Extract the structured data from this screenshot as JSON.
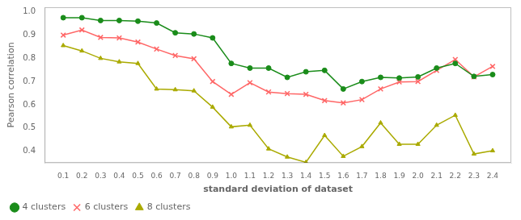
{
  "chart_data": {
    "type": "line",
    "xlabel": "standard deviation of dataset",
    "ylabel": "Pearson correlation",
    "x": [
      0.1,
      0.2,
      0.3,
      0.4,
      0.5,
      0.6,
      0.7,
      0.8,
      0.9,
      1.0,
      1.1,
      1.2,
      1.3,
      1.4,
      1.5,
      1.6,
      1.7,
      1.8,
      1.9,
      2.0,
      2.1,
      2.2,
      2.3,
      2.4
    ],
    "series": [
      {
        "name": "4 clusters",
        "color": "#1a8c1a",
        "marker": "circle",
        "values": [
          0.975,
          0.975,
          0.963,
          0.963,
          0.96,
          0.952,
          0.91,
          0.905,
          0.888,
          0.778,
          0.758,
          0.758,
          0.718,
          0.742,
          0.748,
          0.668,
          0.7,
          0.718,
          0.715,
          0.72,
          0.758,
          0.778,
          0.722,
          0.73
        ]
      },
      {
        "name": "6 clusters",
        "color": "#ff6666",
        "marker": "x",
        "values": [
          0.9,
          0.922,
          0.89,
          0.888,
          0.87,
          0.84,
          0.812,
          0.798,
          0.7,
          0.645,
          0.695,
          0.655,
          0.648,
          0.645,
          0.618,
          0.608,
          0.622,
          0.668,
          0.698,
          0.7,
          0.748,
          0.795,
          0.72,
          0.765
        ]
      },
      {
        "name": "8 clusters",
        "color": "#aaaa00",
        "marker": "triangle",
        "values": [
          0.855,
          0.832,
          0.8,
          0.785,
          0.778,
          0.668,
          0.665,
          0.66,
          0.59,
          0.505,
          0.512,
          0.41,
          0.375,
          0.352,
          0.468,
          0.378,
          0.42,
          0.522,
          0.43,
          0.43,
          0.512,
          0.555,
          0.388,
          0.402
        ]
      }
    ],
    "xlim": [
      0,
      2.5
    ],
    "xticks": [
      0.1,
      0.2,
      0.3,
      0.4,
      0.5,
      0.6,
      0.7,
      0.8,
      0.9,
      {
        "value": 1.0,
        "label": "1.0"
      },
      1.1,
      1.2,
      1.3,
      1.4,
      1.5,
      1.6,
      1.7,
      1.8,
      1.9,
      {
        "value": 2.0,
        "label": "2.0"
      },
      2.1,
      2.2,
      2.3,
      2.4
    ],
    "ylim": [
      0.35,
      1.02
    ],
    "yticks": [
      0.4,
      0.5,
      0.6,
      0.7,
      0.8,
      0.9,
      {
        "value": 1.0,
        "label": "1.0"
      }
    ],
    "grid": false,
    "legend": "lower left"
  }
}
